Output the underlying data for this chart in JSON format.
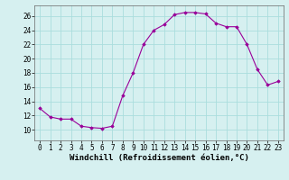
{
  "x": [
    0,
    1,
    2,
    3,
    4,
    5,
    6,
    7,
    8,
    9,
    10,
    11,
    12,
    13,
    14,
    15,
    16,
    17,
    18,
    19,
    20,
    21,
    22,
    23
  ],
  "y": [
    13.0,
    11.8,
    11.5,
    11.5,
    10.5,
    10.3,
    10.2,
    10.5,
    14.8,
    18.0,
    22.0,
    24.0,
    24.8,
    26.2,
    26.5,
    26.5,
    26.3,
    25.0,
    24.5,
    24.5,
    22.0,
    18.5,
    16.3,
    16.8
  ],
  "line_color": "#990099",
  "marker": "D",
  "marker_size": 1.8,
  "bg_color": "#d6f0f0",
  "grid_color": "#aadddd",
  "xlabel": "Windchill (Refroidissement éolien,°C)",
  "xlabel_fontsize": 6.5,
  "xlim": [
    -0.5,
    23.5
  ],
  "ylim": [
    8.5,
    27.5
  ],
  "yticks": [
    10,
    12,
    14,
    16,
    18,
    20,
    22,
    24,
    26
  ],
  "xticks": [
    0,
    1,
    2,
    3,
    4,
    5,
    6,
    7,
    8,
    9,
    10,
    11,
    12,
    13,
    14,
    15,
    16,
    17,
    18,
    19,
    20,
    21,
    22,
    23
  ],
  "tick_fontsize": 5.5,
  "linewidth": 0.8
}
